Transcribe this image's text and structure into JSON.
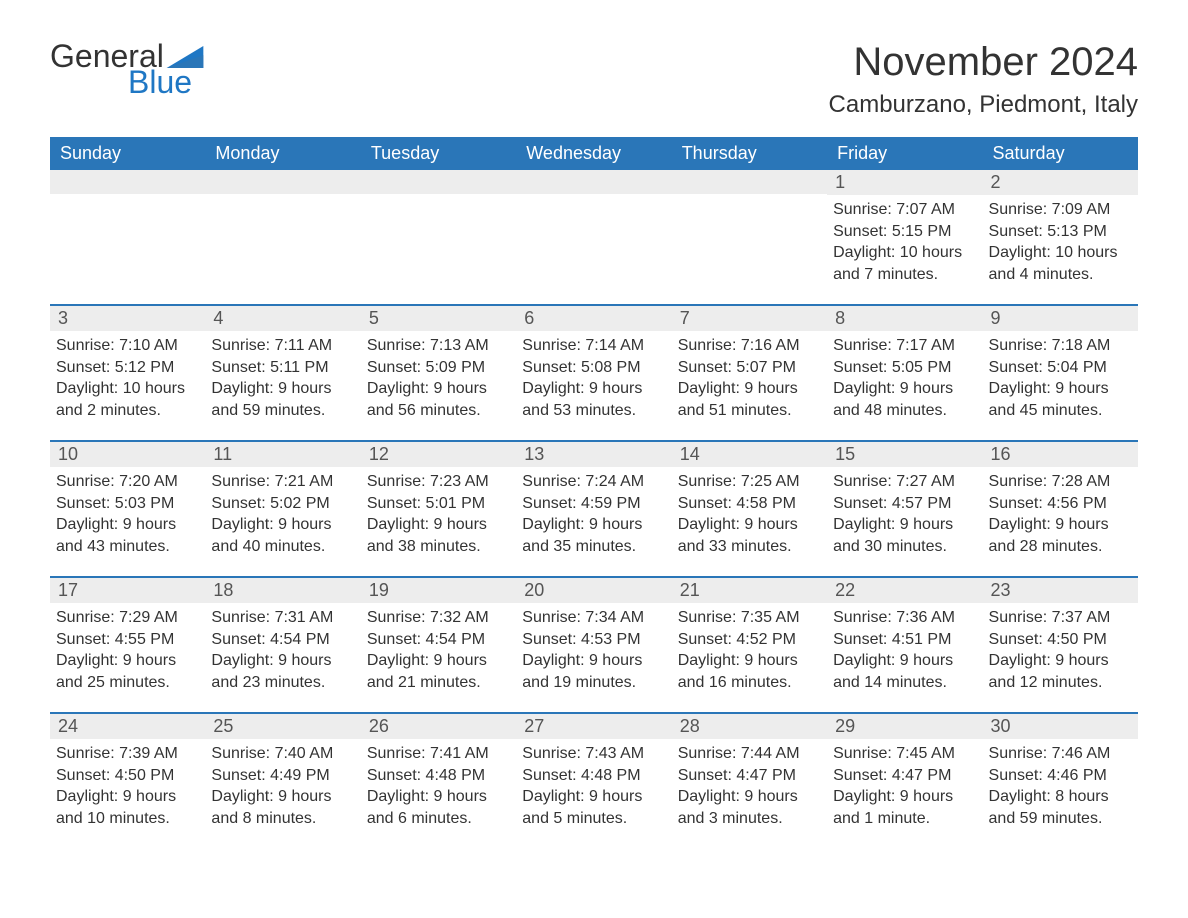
{
  "logo": {
    "general": "General",
    "blue": "Blue"
  },
  "title": "November 2024",
  "location": "Camburzano, Piedmont, Italy",
  "colors": {
    "header_bg": "#2a76b8",
    "header_text": "#ffffff",
    "daynum_bg": "#ededed",
    "daynum_text": "#555555",
    "body_text": "#333333",
    "row_border": "#2a76b8",
    "logo_blue": "#1f77c4",
    "page_bg": "#ffffff"
  },
  "typography": {
    "title_fontsize": 40,
    "location_fontsize": 24,
    "dayheader_fontsize": 18,
    "daynum_fontsize": 18,
    "body_fontsize": 16,
    "font_family": "Arial"
  },
  "day_headers": [
    "Sunday",
    "Monday",
    "Tuesday",
    "Wednesday",
    "Thursday",
    "Friday",
    "Saturday"
  ],
  "weeks": [
    [
      {
        "n": "",
        "sunrise": "",
        "sunset": "",
        "daylight": ""
      },
      {
        "n": "",
        "sunrise": "",
        "sunset": "",
        "daylight": ""
      },
      {
        "n": "",
        "sunrise": "",
        "sunset": "",
        "daylight": ""
      },
      {
        "n": "",
        "sunrise": "",
        "sunset": "",
        "daylight": ""
      },
      {
        "n": "",
        "sunrise": "",
        "sunset": "",
        "daylight": ""
      },
      {
        "n": "1",
        "sunrise": "Sunrise: 7:07 AM",
        "sunset": "Sunset: 5:15 PM",
        "daylight": "Daylight: 10 hours and 7 minutes."
      },
      {
        "n": "2",
        "sunrise": "Sunrise: 7:09 AM",
        "sunset": "Sunset: 5:13 PM",
        "daylight": "Daylight: 10 hours and 4 minutes."
      }
    ],
    [
      {
        "n": "3",
        "sunrise": "Sunrise: 7:10 AM",
        "sunset": "Sunset: 5:12 PM",
        "daylight": "Daylight: 10 hours and 2 minutes."
      },
      {
        "n": "4",
        "sunrise": "Sunrise: 7:11 AM",
        "sunset": "Sunset: 5:11 PM",
        "daylight": "Daylight: 9 hours and 59 minutes."
      },
      {
        "n": "5",
        "sunrise": "Sunrise: 7:13 AM",
        "sunset": "Sunset: 5:09 PM",
        "daylight": "Daylight: 9 hours and 56 minutes."
      },
      {
        "n": "6",
        "sunrise": "Sunrise: 7:14 AM",
        "sunset": "Sunset: 5:08 PM",
        "daylight": "Daylight: 9 hours and 53 minutes."
      },
      {
        "n": "7",
        "sunrise": "Sunrise: 7:16 AM",
        "sunset": "Sunset: 5:07 PM",
        "daylight": "Daylight: 9 hours and 51 minutes."
      },
      {
        "n": "8",
        "sunrise": "Sunrise: 7:17 AM",
        "sunset": "Sunset: 5:05 PM",
        "daylight": "Daylight: 9 hours and 48 minutes."
      },
      {
        "n": "9",
        "sunrise": "Sunrise: 7:18 AM",
        "sunset": "Sunset: 5:04 PM",
        "daylight": "Daylight: 9 hours and 45 minutes."
      }
    ],
    [
      {
        "n": "10",
        "sunrise": "Sunrise: 7:20 AM",
        "sunset": "Sunset: 5:03 PM",
        "daylight": "Daylight: 9 hours and 43 minutes."
      },
      {
        "n": "11",
        "sunrise": "Sunrise: 7:21 AM",
        "sunset": "Sunset: 5:02 PM",
        "daylight": "Daylight: 9 hours and 40 minutes."
      },
      {
        "n": "12",
        "sunrise": "Sunrise: 7:23 AM",
        "sunset": "Sunset: 5:01 PM",
        "daylight": "Daylight: 9 hours and 38 minutes."
      },
      {
        "n": "13",
        "sunrise": "Sunrise: 7:24 AM",
        "sunset": "Sunset: 4:59 PM",
        "daylight": "Daylight: 9 hours and 35 minutes."
      },
      {
        "n": "14",
        "sunrise": "Sunrise: 7:25 AM",
        "sunset": "Sunset: 4:58 PM",
        "daylight": "Daylight: 9 hours and 33 minutes."
      },
      {
        "n": "15",
        "sunrise": "Sunrise: 7:27 AM",
        "sunset": "Sunset: 4:57 PM",
        "daylight": "Daylight: 9 hours and 30 minutes."
      },
      {
        "n": "16",
        "sunrise": "Sunrise: 7:28 AM",
        "sunset": "Sunset: 4:56 PM",
        "daylight": "Daylight: 9 hours and 28 minutes."
      }
    ],
    [
      {
        "n": "17",
        "sunrise": "Sunrise: 7:29 AM",
        "sunset": "Sunset: 4:55 PM",
        "daylight": "Daylight: 9 hours and 25 minutes."
      },
      {
        "n": "18",
        "sunrise": "Sunrise: 7:31 AM",
        "sunset": "Sunset: 4:54 PM",
        "daylight": "Daylight: 9 hours and 23 minutes."
      },
      {
        "n": "19",
        "sunrise": "Sunrise: 7:32 AM",
        "sunset": "Sunset: 4:54 PM",
        "daylight": "Daylight: 9 hours and 21 minutes."
      },
      {
        "n": "20",
        "sunrise": "Sunrise: 7:34 AM",
        "sunset": "Sunset: 4:53 PM",
        "daylight": "Daylight: 9 hours and 19 minutes."
      },
      {
        "n": "21",
        "sunrise": "Sunrise: 7:35 AM",
        "sunset": "Sunset: 4:52 PM",
        "daylight": "Daylight: 9 hours and 16 minutes."
      },
      {
        "n": "22",
        "sunrise": "Sunrise: 7:36 AM",
        "sunset": "Sunset: 4:51 PM",
        "daylight": "Daylight: 9 hours and 14 minutes."
      },
      {
        "n": "23",
        "sunrise": "Sunrise: 7:37 AM",
        "sunset": "Sunset: 4:50 PM",
        "daylight": "Daylight: 9 hours and 12 minutes."
      }
    ],
    [
      {
        "n": "24",
        "sunrise": "Sunrise: 7:39 AM",
        "sunset": "Sunset: 4:50 PM",
        "daylight": "Daylight: 9 hours and 10 minutes."
      },
      {
        "n": "25",
        "sunrise": "Sunrise: 7:40 AM",
        "sunset": "Sunset: 4:49 PM",
        "daylight": "Daylight: 9 hours and 8 minutes."
      },
      {
        "n": "26",
        "sunrise": "Sunrise: 7:41 AM",
        "sunset": "Sunset: 4:48 PM",
        "daylight": "Daylight: 9 hours and 6 minutes."
      },
      {
        "n": "27",
        "sunrise": "Sunrise: 7:43 AM",
        "sunset": "Sunset: 4:48 PM",
        "daylight": "Daylight: 9 hours and 5 minutes."
      },
      {
        "n": "28",
        "sunrise": "Sunrise: 7:44 AM",
        "sunset": "Sunset: 4:47 PM",
        "daylight": "Daylight: 9 hours and 3 minutes."
      },
      {
        "n": "29",
        "sunrise": "Sunrise: 7:45 AM",
        "sunset": "Sunset: 4:47 PM",
        "daylight": "Daylight: 9 hours and 1 minute."
      },
      {
        "n": "30",
        "sunrise": "Sunrise: 7:46 AM",
        "sunset": "Sunset: 4:46 PM",
        "daylight": "Daylight: 8 hours and 59 minutes."
      }
    ]
  ]
}
